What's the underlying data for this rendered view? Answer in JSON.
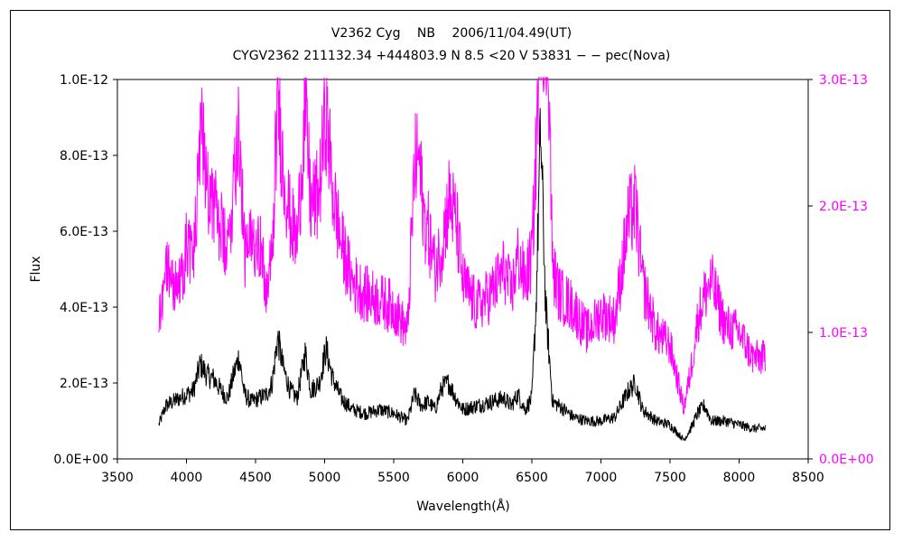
{
  "chart_data": {
    "type": "line",
    "title": "V2362 Cyg　 NB 　2006/11/04.49(UT)",
    "subtitle": "CYGV2362 211132.34 +444803.9 N 8.5 <20 V 53831 − − pec(Nova)",
    "xlabel": "Wavelength(Å)",
    "ylabel": "Flux",
    "xlim": [
      3500,
      8500
    ],
    "xticks": [
      3500,
      4000,
      4500,
      5000,
      5500,
      6000,
      6500,
      7000,
      7500,
      8000,
      8500
    ],
    "ylim_left": [
      0,
      1e-12
    ],
    "yticks_left": [
      "0.0E+00",
      "2.0E-13",
      "4.0E-13",
      "6.0E-13",
      "8.0E-13",
      "1.0E-12"
    ],
    "ylim_right": [
      0,
      3e-13
    ],
    "yticks_right": [
      "0.0E+00",
      "1.0E-13",
      "2.0E-13",
      "3.0E-13"
    ],
    "grid": false,
    "series": [
      {
        "axis": "left",
        "color": "#000000",
        "x": [
          3800,
          3850,
          3900,
          3950,
          4000,
          4050,
          4100,
          4150,
          4200,
          4250,
          4300,
          4340,
          4380,
          4420,
          4470,
          4520,
          4580,
          4620,
          4660,
          4700,
          4750,
          4800,
          4860,
          4900,
          4960,
          5010,
          5060,
          5120,
          5200,
          5300,
          5400,
          5500,
          5600,
          5650,
          5700,
          5750,
          5800,
          5850,
          5900,
          5950,
          6000,
          6100,
          6200,
          6300,
          6350,
          6400,
          6450,
          6500,
          6530,
          6563,
          6600,
          6650,
          6700,
          6800,
          6900,
          7000,
          7100,
          7200,
          7250,
          7300,
          7400,
          7500,
          7600,
          7650,
          7700,
          7750,
          7800,
          7900,
          8000,
          8100,
          8190
        ],
        "y": [
          9e-14,
          1.4e-13,
          1.5e-13,
          1.6e-13,
          1.7e-13,
          1.8e-13,
          2.5e-13,
          2.2e-13,
          2.1e-13,
          1.8e-13,
          1.6e-13,
          2.2e-13,
          2.7e-13,
          1.7e-13,
          1.5e-13,
          1.6e-13,
          1.7e-13,
          2e-13,
          3.2e-13,
          2.4e-13,
          1.8e-13,
          1.6e-13,
          2.8e-13,
          1.8e-13,
          2e-13,
          2.9e-13,
          2.1e-13,
          1.6e-13,
          1.3e-13,
          1.2e-13,
          1.3e-13,
          1.2e-13,
          1e-13,
          1.7e-13,
          1.4e-13,
          1.5e-13,
          1.3e-13,
          1.9e-13,
          2e-13,
          1.6e-13,
          1.3e-13,
          1.4e-13,
          1.5e-13,
          1.6e-13,
          1.4e-13,
          1.7e-13,
          1.3e-13,
          1.6e-13,
          4e-13,
          8.7e-13,
          4e-13,
          1.5e-13,
          1.4e-13,
          1.1e-13,
          1e-13,
          1e-13,
          1.1e-13,
          1.8e-13,
          2e-13,
          1.3e-13,
          1e-13,
          9e-14,
          5e-14,
          8e-14,
          1.2e-13,
          1.4e-13,
          1e-13,
          1e-13,
          9e-14,
          8e-14,
          8e-14
        ]
      },
      {
        "axis": "right",
        "color": "#ff00ff",
        "x": [
          3800,
          3830,
          3860,
          3900,
          3950,
          4000,
          4050,
          4100,
          4120,
          4150,
          4200,
          4250,
          4300,
          4340,
          4380,
          4420,
          4470,
          4520,
          4580,
          4620,
          4660,
          4700,
          4750,
          4800,
          4860,
          4900,
          4960,
          5010,
          5060,
          5120,
          5200,
          5300,
          5400,
          5500,
          5600,
          5650,
          5680,
          5720,
          5750,
          5800,
          5850,
          5900,
          5950,
          6000,
          6100,
          6200,
          6300,
          6350,
          6400,
          6450,
          6500,
          6530,
          6563,
          6620,
          6650,
          6700,
          6800,
          6900,
          7000,
          7100,
          7200,
          7250,
          7300,
          7400,
          7500,
          7600,
          7650,
          7700,
          7750,
          7800,
          7900,
          8000,
          8100,
          8190
        ],
        "y": [
          1.1e-13,
          1.35e-13,
          1.55e-13,
          1.4e-13,
          1.35e-13,
          1.7e-13,
          1.6e-13,
          2.4e-13,
          2.6e-13,
          2.2e-13,
          2e-13,
          1.8e-13,
          1.6e-13,
          2.2e-13,
          2.7e-13,
          1.6e-13,
          1.7e-13,
          1.8e-13,
          1.3e-13,
          1.6e-13,
          2.9e-13,
          2.3e-13,
          1.9e-13,
          1.7e-13,
          2.8e-13,
          2e-13,
          2.1e-13,
          2.75e-13,
          2.1e-13,
          1.7e-13,
          1.4e-13,
          1.3e-13,
          1.25e-13,
          1.2e-13,
          1e-13,
          2.3e-13,
          2.4e-13,
          1.9e-13,
          1.8e-13,
          1.5e-13,
          1.7e-13,
          2.05e-13,
          1.9e-13,
          1.4e-13,
          1.2e-13,
          1.3e-13,
          1.5e-13,
          1.3e-13,
          1.6e-13,
          1.4e-13,
          1.6e-13,
          2.4e-13,
          3.7e-13,
          3.2e-13,
          1.5e-13,
          1.3e-13,
          1.2e-13,
          1e-13,
          1.15e-13,
          1.1e-13,
          1.9e-13,
          2e-13,
          1.4e-13,
          1e-13,
          9e-14,
          4e-14,
          7e-14,
          1.1e-13,
          1.3e-13,
          1.4e-13,
          1.05e-13,
          1e-13,
          8e-14,
          8e-14
        ]
      }
    ]
  }
}
